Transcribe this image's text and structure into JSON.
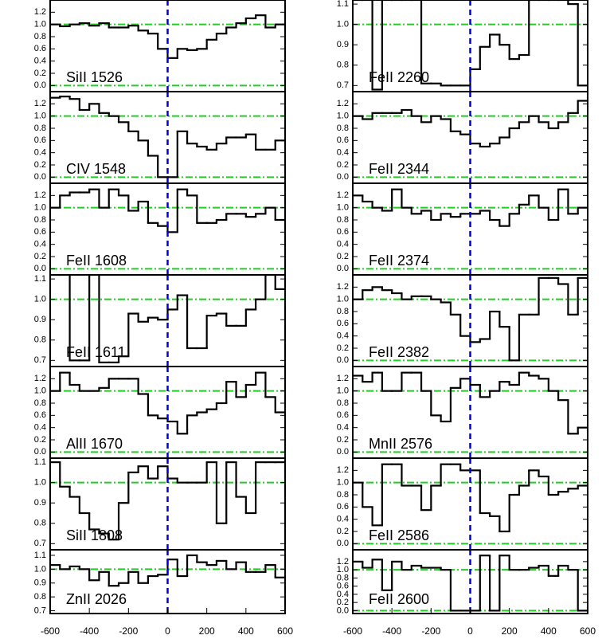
{
  "style": {
    "line_color": "#000000",
    "hline_color": "#22cc22",
    "vline_color": "#0000dd"
  },
  "chart_data": [
    {
      "type": "step",
      "label": "SiII 1526",
      "xlim": [
        -600,
        600
      ],
      "ylim": [
        -0.1,
        1.4
      ],
      "yticks": [
        {
          "value": 0,
          "label": "0.0"
        },
        0.2,
        0.4,
        0.6,
        0.8,
        {
          "value": 1,
          "label": "1.0"
        },
        1.2
      ],
      "hlines": [
        0,
        1
      ],
      "vline": 0,
      "x": [
        -575,
        -525,
        -475,
        -425,
        -375,
        -325,
        -275,
        -225,
        -175,
        -125,
        -75,
        -25,
        25,
        75,
        125,
        175,
        225,
        275,
        325,
        375,
        425,
        475,
        525,
        575
      ],
      "values": [
        1.0,
        0.97,
        1.0,
        1.02,
        0.98,
        1.02,
        0.95,
        0.95,
        0.98,
        0.9,
        0.85,
        0.6,
        0.45,
        0.6,
        0.58,
        0.6,
        0.75,
        0.85,
        0.95,
        1.02,
        1.1,
        1.15,
        0.95,
        1.0
      ]
    },
    {
      "type": "step",
      "label": "CIV 1548",
      "xlim": [
        -600,
        600
      ],
      "ylim": [
        -0.1,
        1.4
      ],
      "yticks": [
        {
          "value": 0,
          "label": "0.0"
        },
        0.2,
        0.4,
        0.6,
        0.8,
        {
          "value": 1,
          "label": "1.0"
        },
        1.2
      ],
      "hlines": [
        0,
        1
      ],
      "vline": 0,
      "x": [
        -575,
        -525,
        -475,
        -425,
        -375,
        -325,
        -275,
        -225,
        -175,
        -125,
        -75,
        -25,
        25,
        75,
        125,
        175,
        225,
        275,
        325,
        375,
        425,
        475,
        525,
        575
      ],
      "values": [
        1.3,
        1.32,
        1.28,
        1.1,
        1.2,
        1.05,
        1.0,
        0.9,
        0.75,
        0.6,
        0.35,
        0.0,
        0.0,
        0.75,
        0.55,
        0.5,
        0.45,
        0.55,
        0.65,
        0.65,
        0.7,
        0.45,
        0.45,
        0.6
      ]
    },
    {
      "type": "step",
      "label": "FeII 1608",
      "xlim": [
        -600,
        600
      ],
      "ylim": [
        -0.1,
        1.4
      ],
      "yticks": [
        {
          "value": 0,
          "label": "0.0"
        },
        0.2,
        0.4,
        0.6,
        0.8,
        {
          "value": 1,
          "label": "1.0"
        },
        1.2
      ],
      "hlines": [
        0,
        1
      ],
      "vline": 0,
      "x": [
        -575,
        -525,
        -475,
        -425,
        -375,
        -325,
        -275,
        -225,
        -175,
        -125,
        -75,
        -25,
        25,
        75,
        125,
        175,
        225,
        275,
        325,
        375,
        425,
        475,
        525,
        575
      ],
      "values": [
        1.0,
        1.2,
        1.25,
        1.25,
        1.3,
        1.0,
        1.3,
        1.2,
        0.95,
        1.1,
        0.75,
        0.7,
        0.6,
        1.3,
        1.2,
        0.75,
        0.75,
        0.8,
        0.9,
        0.9,
        0.85,
        0.9,
        1.0,
        0.8
      ]
    },
    {
      "type": "step",
      "label": "FeII 1611",
      "xlim": [
        -600,
        600
      ],
      "ylim": [
        0.67,
        1.12
      ],
      "yticks": [
        0.7,
        0.8,
        0.9,
        {
          "value": 1,
          "label": "1.0"
        },
        1.1
      ],
      "hlines": [
        1
      ],
      "vline": 0,
      "x": [
        -575,
        -525,
        -475,
        -425,
        -375,
        -325,
        -275,
        -225,
        -175,
        -125,
        -75,
        -25,
        25,
        75,
        125,
        175,
        225,
        275,
        325,
        375,
        425,
        475,
        525,
        575
      ],
      "values": [
        1.12,
        1.12,
        0.7,
        0.7,
        1.12,
        0.69,
        0.69,
        0.72,
        0.93,
        0.89,
        0.91,
        0.9,
        0.95,
        1.02,
        0.76,
        0.76,
        0.92,
        0.93,
        0.87,
        0.87,
        0.95,
        1.0,
        1.12,
        1.05
      ]
    },
    {
      "type": "step",
      "label": "AlII 1670",
      "xlim": [
        -600,
        600
      ],
      "ylim": [
        -0.1,
        1.4
      ],
      "yticks": [
        {
          "value": 0,
          "label": "0.0"
        },
        0.2,
        0.4,
        0.6,
        0.8,
        {
          "value": 1,
          "label": "1.0"
        },
        1.2
      ],
      "hlines": [
        0,
        1
      ],
      "vline": 0,
      "x": [
        -575,
        -525,
        -475,
        -425,
        -375,
        -325,
        -275,
        -225,
        -175,
        -125,
        -75,
        -25,
        25,
        75,
        125,
        175,
        225,
        275,
        325,
        375,
        425,
        475,
        525,
        575
      ],
      "values": [
        1.0,
        1.3,
        1.1,
        1.0,
        1.0,
        1.05,
        1.2,
        1.2,
        1.2,
        0.95,
        0.6,
        0.55,
        0.5,
        0.3,
        0.6,
        0.65,
        0.7,
        0.8,
        1.15,
        0.9,
        1.1,
        1.3,
        0.9,
        0.65
      ]
    },
    {
      "type": "step",
      "label": "SiII 1808",
      "xlim": [
        -600,
        600
      ],
      "ylim": [
        0.67,
        1.12
      ],
      "yticks": [
        0.7,
        0.8,
        0.9,
        {
          "value": 1,
          "label": "1.0"
        },
        1.1
      ],
      "hlines": [
        1
      ],
      "vline": 0,
      "x": [
        -575,
        -525,
        -475,
        -425,
        -375,
        -325,
        -275,
        -225,
        -175,
        -125,
        -75,
        -25,
        25,
        75,
        125,
        175,
        225,
        275,
        325,
        375,
        425,
        475,
        525,
        575
      ],
      "values": [
        1.1,
        0.98,
        0.93,
        0.85,
        0.77,
        0.75,
        0.72,
        0.9,
        1.05,
        1.08,
        1.02,
        1.08,
        1.02,
        1.0,
        1.0,
        1.0,
        1.1,
        0.8,
        1.1,
        0.93,
        0.85,
        1.1,
        1.1,
        1.1
      ]
    },
    {
      "type": "step",
      "label": "ZnII 2026",
      "xlim": [
        -600,
        600
      ],
      "ylim": [
        0.68,
        1.14
      ],
      "yticks": [
        0.7,
        0.8,
        0.9,
        {
          "value": 1,
          "label": "1.0"
        },
        1.1
      ],
      "hlines": [
        1
      ],
      "vline": 0,
      "xticks": [
        -600,
        -400,
        -200,
        0,
        200,
        400,
        600
      ],
      "x": [
        -575,
        -525,
        -475,
        -425,
        -375,
        -325,
        -275,
        -225,
        -175,
        -125,
        -75,
        -25,
        25,
        75,
        125,
        175,
        225,
        275,
        325,
        375,
        425,
        475,
        525,
        575
      ],
      "values": [
        1.03,
        1.0,
        1.02,
        1.0,
        0.92,
        0.98,
        0.88,
        0.9,
        0.98,
        0.9,
        0.95,
        0.96,
        1.07,
        0.95,
        1.1,
        1.05,
        1.03,
        1.06,
        1.0,
        1.05,
        0.98,
        0.98,
        1.03,
        0.94
      ]
    },
    {
      "type": "step",
      "label": "FeII 2260",
      "xlim": [
        -600,
        600
      ],
      "ylim": [
        0.67,
        1.12
      ],
      "yticks": [
        0.7,
        0.8,
        0.9,
        {
          "value": 1,
          "label": "1.0"
        },
        1.1
      ],
      "hlines": [
        1
      ],
      "vline": 0,
      "x": [
        -575,
        -525,
        -475,
        -425,
        -375,
        -325,
        -275,
        -225,
        -175,
        -125,
        -75,
        -25,
        25,
        75,
        125,
        175,
        225,
        275,
        325,
        375,
        425,
        475,
        525,
        575
      ],
      "values": [
        1.12,
        1.12,
        0.68,
        1.12,
        1.12,
        1.12,
        1.12,
        0.71,
        0.71,
        0.7,
        0.7,
        0.7,
        0.78,
        0.89,
        0.95,
        0.9,
        0.83,
        0.85,
        1.12,
        1.12,
        1.12,
        1.12,
        1.1,
        0.7
      ]
    },
    {
      "type": "step",
      "label": "FeII 2344",
      "xlim": [
        -600,
        600
      ],
      "ylim": [
        -0.1,
        1.4
      ],
      "yticks": [
        {
          "value": 0,
          "label": "0.0"
        },
        0.2,
        0.4,
        0.6,
        0.8,
        {
          "value": 1,
          "label": "1.0"
        },
        1.2
      ],
      "hlines": [
        0,
        1
      ],
      "vline": 0,
      "x": [
        -575,
        -525,
        -475,
        -425,
        -375,
        -325,
        -275,
        -225,
        -175,
        -125,
        -75,
        -25,
        25,
        75,
        125,
        175,
        225,
        275,
        325,
        375,
        425,
        475,
        525,
        575
      ],
      "values": [
        1.0,
        0.95,
        1.05,
        1.05,
        1.05,
        1.1,
        1.0,
        0.9,
        1.0,
        0.95,
        0.75,
        0.7,
        0.55,
        0.5,
        0.55,
        0.65,
        0.8,
        0.9,
        1.0,
        0.9,
        0.8,
        0.9,
        1.05,
        1.25
      ]
    },
    {
      "type": "step",
      "label": "FeII 2374",
      "xlim": [
        -600,
        600
      ],
      "ylim": [
        -0.1,
        1.4
      ],
      "yticks": [
        {
          "value": 0,
          "label": "0.0"
        },
        0.2,
        0.4,
        0.6,
        0.8,
        {
          "value": 1,
          "label": "1.0"
        },
        1.2
      ],
      "hlines": [
        0,
        1
      ],
      "vline": 0,
      "x": [
        -575,
        -525,
        -475,
        -425,
        -375,
        -325,
        -275,
        -225,
        -175,
        -125,
        -75,
        -25,
        25,
        75,
        125,
        175,
        225,
        275,
        325,
        375,
        425,
        475,
        525,
        575
      ],
      "values": [
        1.2,
        1.1,
        1.0,
        0.95,
        1.3,
        1.0,
        0.9,
        0.95,
        0.8,
        0.9,
        0.85,
        0.9,
        0.9,
        0.95,
        0.8,
        0.7,
        0.9,
        1.05,
        1.2,
        1.0,
        0.8,
        1.3,
        0.9,
        1.0
      ]
    },
    {
      "type": "step",
      "label": "FeII 2382",
      "xlim": [
        -600,
        600
      ],
      "ylim": [
        -0.1,
        1.4
      ],
      "yticks": [
        {
          "value": 0,
          "label": "0.0"
        },
        0.2,
        0.4,
        0.6,
        0.8,
        {
          "value": 1,
          "label": "1.0"
        },
        1.2
      ],
      "hlines": [
        0,
        1
      ],
      "vline": 0,
      "x": [
        -575,
        -525,
        -475,
        -425,
        -375,
        -325,
        -275,
        -225,
        -175,
        -125,
        -75,
        -25,
        25,
        75,
        125,
        175,
        225,
        275,
        325,
        375,
        425,
        475,
        525,
        575
      ],
      "values": [
        1.0,
        1.15,
        1.2,
        1.15,
        1.1,
        1.0,
        1.05,
        1.05,
        1.0,
        0.95,
        0.75,
        0.4,
        0.3,
        0.35,
        0.8,
        0.55,
        0.0,
        0.75,
        0.75,
        1.35,
        1.35,
        1.25,
        0.75,
        1.35
      ]
    },
    {
      "type": "step",
      "label": "MnII 2576",
      "xlim": [
        -600,
        600
      ],
      "ylim": [
        -0.1,
        1.4
      ],
      "yticks": [
        {
          "value": 0,
          "label": "0.0"
        },
        0.2,
        0.4,
        0.6,
        0.8,
        {
          "value": 1,
          "label": "1.0"
        },
        1.2
      ],
      "hlines": [
        0,
        1
      ],
      "vline": 0,
      "x": [
        -575,
        -525,
        -475,
        -425,
        -375,
        -325,
        -275,
        -225,
        -175,
        -125,
        -75,
        -25,
        25,
        75,
        125,
        175,
        225,
        275,
        325,
        375,
        425,
        475,
        525,
        575
      ],
      "values": [
        1.25,
        1.15,
        1.3,
        1.0,
        1.0,
        1.3,
        1.3,
        1.0,
        0.6,
        0.5,
        1.05,
        1.2,
        1.1,
        0.9,
        1.0,
        1.15,
        1.1,
        1.3,
        1.25,
        1.2,
        1.0,
        0.85,
        0.3,
        0.4
      ]
    },
    {
      "type": "step",
      "label": "FeII 2586",
      "xlim": [
        -600,
        600
      ],
      "ylim": [
        -0.1,
        1.4
      ],
      "yticks": [
        {
          "value": 0,
          "label": "0.0"
        },
        0.2,
        0.4,
        0.6,
        0.8,
        {
          "value": 1,
          "label": "1.0"
        },
        1.2
      ],
      "hlines": [
        0,
        1
      ],
      "vline": 0,
      "x": [
        -575,
        -525,
        -475,
        -425,
        -375,
        -325,
        -275,
        -225,
        -175,
        -125,
        -75,
        -25,
        25,
        75,
        125,
        175,
        225,
        275,
        325,
        375,
        425,
        475,
        525,
        575
      ],
      "values": [
        1.0,
        0.6,
        0.3,
        1.3,
        1.3,
        0.95,
        0.95,
        0.55,
        0.95,
        1.3,
        1.3,
        1.2,
        1.2,
        0.5,
        0.45,
        0.2,
        0.8,
        0.95,
        1.2,
        1.1,
        0.8,
        0.85,
        0.9,
        0.95
      ]
    },
    {
      "type": "step",
      "label": "FeII 2600",
      "xlim": [
        -600,
        600
      ],
      "ylim": [
        -0.07,
        1.49
      ],
      "yticks": [
        {
          "value": 0,
          "label": "0.0"
        },
        0.2,
        0.4,
        0.6,
        0.8,
        {
          "value": 1,
          "label": "1.0"
        },
        1.2
      ],
      "hlines": [
        0,
        1
      ],
      "vline": 0,
      "xticks": [
        -600,
        -400,
        -200,
        0,
        200,
        400,
        600
      ],
      "x": [
        -575,
        -525,
        -475,
        -425,
        -375,
        -325,
        -275,
        -225,
        -175,
        -125,
        -75,
        -25,
        25,
        75,
        125,
        175,
        225,
        275,
        325,
        375,
        425,
        475,
        525,
        575
      ],
      "values": [
        1.2,
        1.05,
        1.25,
        0.5,
        1.2,
        1.0,
        1.1,
        1.05,
        1.05,
        1.0,
        0.0,
        0.0,
        0.0,
        1.35,
        0.0,
        1.35,
        1.0,
        1.0,
        1.05,
        1.1,
        0.85,
        1.1,
        1.0,
        0.0
      ]
    }
  ]
}
